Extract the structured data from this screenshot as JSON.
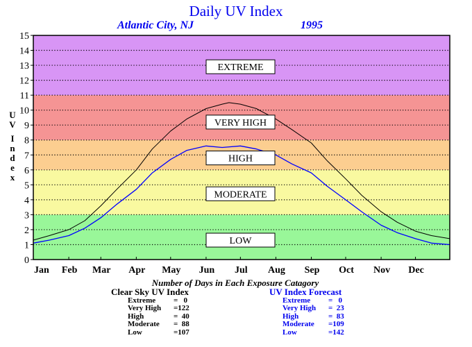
{
  "chart_data": {
    "type": "line",
    "title": "Daily UV Index",
    "subtitle_location": "Atlantic City, NJ",
    "subtitle_year": "1995",
    "ylabel": "UV Index",
    "ylim": [
      0,
      15
    ],
    "yticks": [
      0,
      1,
      2,
      3,
      4,
      5,
      6,
      7,
      8,
      9,
      10,
      11,
      12,
      13,
      14,
      15
    ],
    "months": [
      "Jan",
      "Feb",
      "Mar",
      "Apr",
      "May",
      "Jun",
      "Jul",
      "Aug",
      "Sep",
      "Oct",
      "Nov",
      "Dec"
    ],
    "grid": true,
    "bands": [
      {
        "label": "LOW",
        "from": 0,
        "to": 3,
        "color": "#99f799"
      },
      {
        "label": "MODERATE",
        "from": 3,
        "to": 6,
        "color": "#f9f9a0"
      },
      {
        "label": "HIGH",
        "from": 6,
        "to": 8,
        "color": "#fcce90"
      },
      {
        "label": "VERY HIGH",
        "from": 8,
        "to": 11,
        "color": "#f59494"
      },
      {
        "label": "EXTREME",
        "from": 11,
        "to": 15,
        "color": "#d895f5"
      }
    ],
    "band_label_positions": [
      {
        "label": "EXTREME",
        "y": 12.9
      },
      {
        "label": "VERY HIGH",
        "y": 9.2
      },
      {
        "label": "HIGH",
        "y": 6.8
      },
      {
        "label": "MODERATE",
        "y": 4.4
      },
      {
        "label": "LOW",
        "y": 1.3
      }
    ],
    "series": [
      {
        "name": "Clear Sky UV Index",
        "color": "#000000",
        "x": [
          1,
          15,
          32,
          46,
          60,
          74,
          91,
          105,
          121,
          135,
          152,
          166,
          172,
          182,
          196,
          213,
          227,
          244,
          258,
          274,
          288,
          305,
          319,
          335,
          349,
          365
        ],
        "values": [
          1.3,
          1.6,
          2.0,
          2.6,
          3.6,
          4.7,
          6.0,
          7.4,
          8.6,
          9.4,
          10.1,
          10.4,
          10.5,
          10.4,
          10.1,
          9.4,
          8.7,
          7.8,
          6.6,
          5.4,
          4.3,
          3.2,
          2.5,
          1.9,
          1.6,
          1.4
        ]
      },
      {
        "name": "UV Index Forecast",
        "color": "#0000ff",
        "x": [
          1,
          15,
          32,
          46,
          60,
          74,
          91,
          105,
          121,
          135,
          152,
          166,
          182,
          196,
          213,
          227,
          244,
          258,
          274,
          288,
          305,
          319,
          335,
          349,
          365
        ],
        "values": [
          1.1,
          1.3,
          1.6,
          2.1,
          2.8,
          3.7,
          4.7,
          5.8,
          6.7,
          7.3,
          7.6,
          7.5,
          7.6,
          7.4,
          7.0,
          6.4,
          5.8,
          4.9,
          4.0,
          3.2,
          2.3,
          1.8,
          1.4,
          1.1,
          1.0
        ]
      }
    ]
  },
  "summary": {
    "heading": "Number of Days in Each Exposure Catagory",
    "clear_sky": {
      "title": "Clear Sky UV Index",
      "rows": [
        {
          "label": "Extreme",
          "value": "=   0"
        },
        {
          "label": "Very High",
          "value": "=122"
        },
        {
          "label": "High",
          "value": "=  40"
        },
        {
          "label": "Moderate",
          "value": "=  88"
        },
        {
          "label": "Low",
          "value": "=107"
        }
      ]
    },
    "forecast": {
      "title": "UV Index Forecast",
      "rows": [
        {
          "label": "Extreme",
          "value": "=   0"
        },
        {
          "label": "Very High",
          "value": "=  23"
        },
        {
          "label": "High",
          "value": "=  83"
        },
        {
          "label": "Moderate",
          "value": "=109"
        },
        {
          "label": "Low",
          "value": "=142"
        }
      ]
    }
  }
}
